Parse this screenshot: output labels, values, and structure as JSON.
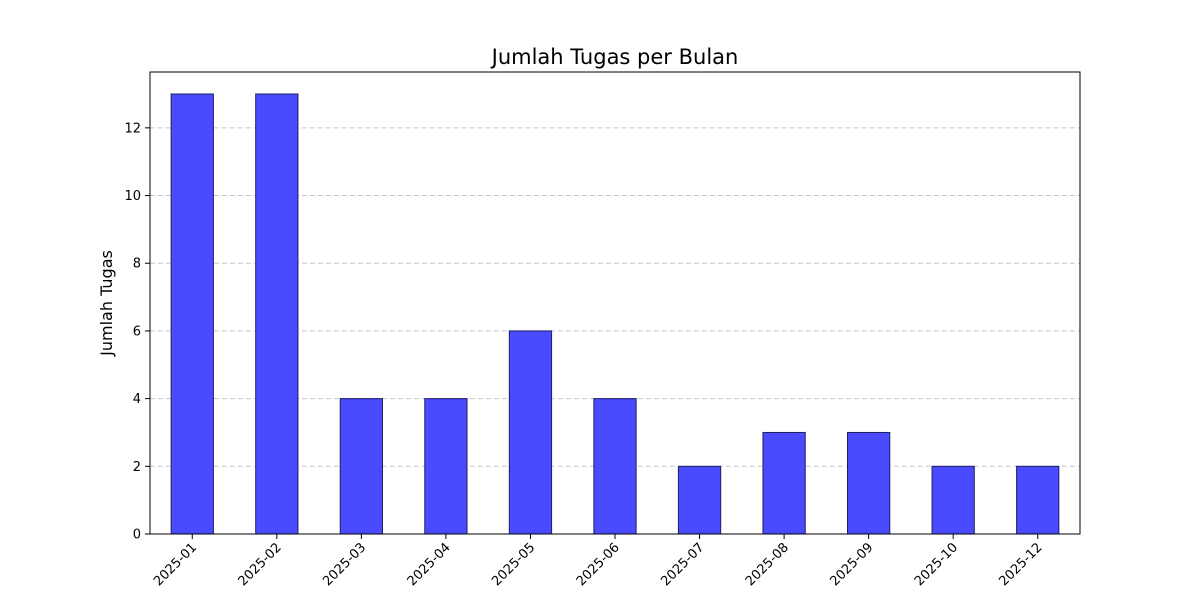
{
  "chart_data": {
    "type": "bar",
    "title": "Jumlah Tugas per Bulan",
    "xlabel": "",
    "ylabel": "Jumlah Tugas",
    "categories": [
      "2025-01",
      "2025-02",
      "2025-03",
      "2025-04",
      "2025-05",
      "2025-06",
      "2025-07",
      "2025-08",
      "2025-09",
      "2025-10",
      "2025-12"
    ],
    "values": [
      13,
      13,
      4,
      4,
      6,
      4,
      2,
      3,
      3,
      2,
      2
    ],
    "ylim": [
      0,
      13.65
    ],
    "yticks": [
      0,
      2,
      4,
      6,
      8,
      10,
      12
    ],
    "grid": "y-dashed",
    "legend": "none",
    "colors": {
      "bar_fill": "#4a4aff",
      "bar_edge": "#202060",
      "grid": "#c8c8c8",
      "axis": "#000000"
    }
  }
}
